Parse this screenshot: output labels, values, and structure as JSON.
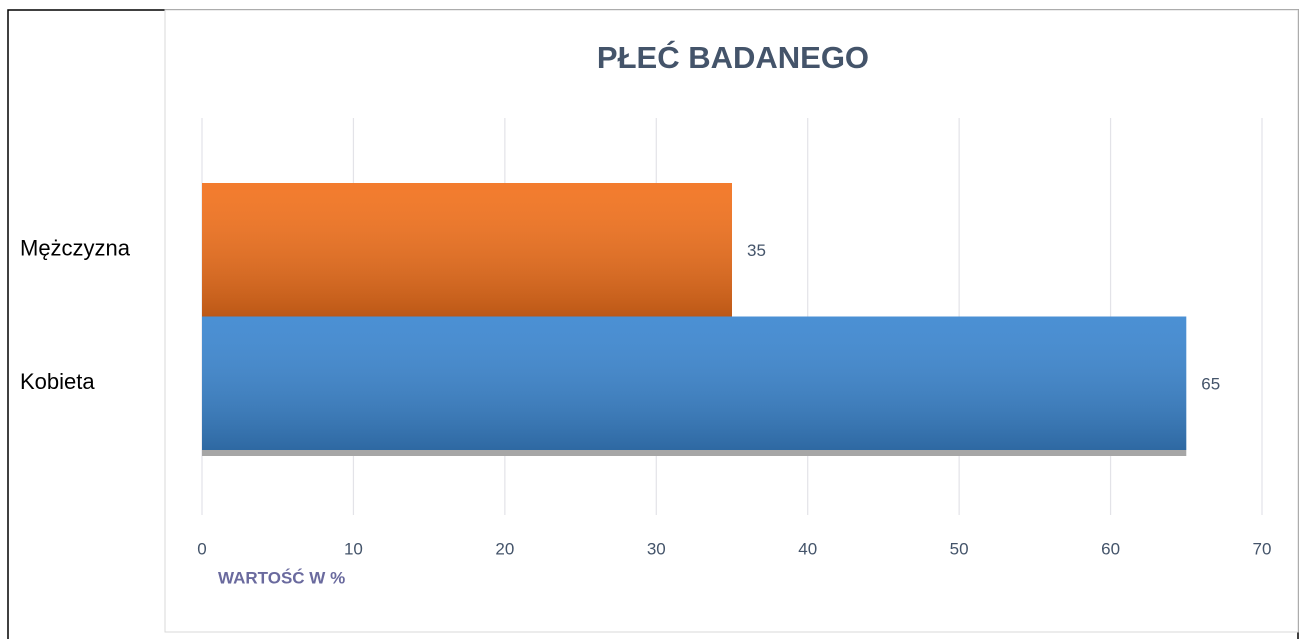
{
  "chart_data": {
    "type": "bar",
    "orientation": "horizontal",
    "title": "PŁEĆ BADANEGO",
    "x_axis_label": "WARTOŚĆ W %",
    "categories": [
      "Mężczyzna",
      "Kobieta"
    ],
    "values": [
      35,
      65
    ],
    "colors": [
      "#f2711c",
      "#3b86d0"
    ],
    "xlim": [
      0,
      70
    ],
    "xticks": [
      0,
      10,
      20,
      30,
      40,
      50,
      60,
      70
    ],
    "grid": true
  }
}
